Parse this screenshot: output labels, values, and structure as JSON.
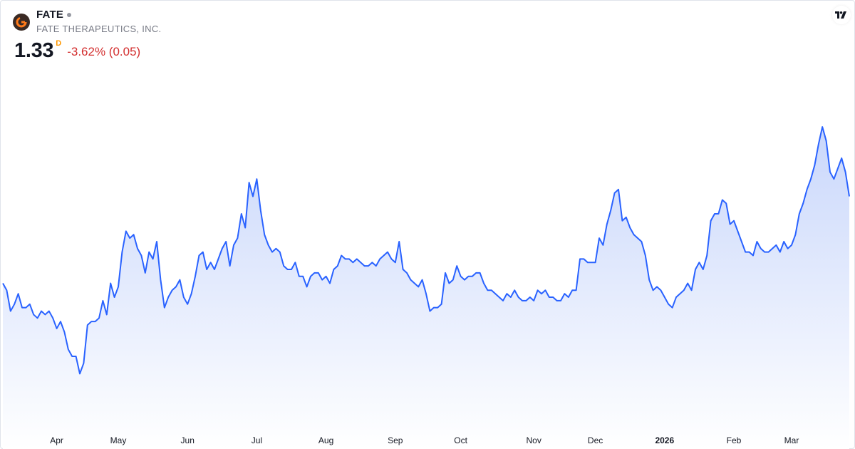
{
  "header": {
    "ticker": "FATE",
    "company": "FATE THERAPEUTICS, INC.",
    "price": "1.33",
    "interval": "D",
    "change": "-3.62% (0.05)"
  },
  "colors": {
    "line": "#2962ff",
    "fill_top": "#c9d7fb",
    "fill_bottom": "#ffffff",
    "negative": "#d32f2f",
    "interval": "#ff9800"
  },
  "icons": {
    "logo": "fate-logo-icon",
    "brand": "tradingview-logo-icon",
    "status": "market-status-dot"
  },
  "chart_data": {
    "type": "area",
    "title": "",
    "xlabel": "",
    "ylabel": "",
    "ylim": [
      0.71,
      1.69
    ],
    "grid": false,
    "legend": "none",
    "x_ticks": [
      {
        "label": "Apr",
        "index": 14,
        "bold": false
      },
      {
        "label": "May",
        "index": 30,
        "bold": false
      },
      {
        "label": "Jun",
        "index": 48,
        "bold": false
      },
      {
        "label": "Jul",
        "index": 66,
        "bold": false
      },
      {
        "label": "Aug",
        "index": 84,
        "bold": false
      },
      {
        "label": "Sep",
        "index": 102,
        "bold": false
      },
      {
        "label": "Oct",
        "index": 119,
        "bold": false
      },
      {
        "label": "Nov",
        "index": 138,
        "bold": false
      },
      {
        "label": "Dec",
        "index": 154,
        "bold": false
      },
      {
        "label": "2026",
        "index": 172,
        "bold": true
      },
      {
        "label": "Feb",
        "index": 190,
        "bold": false
      },
      {
        "label": "Mar",
        "index": 205,
        "bold": false
      }
    ],
    "series": [
      {
        "values": [
          1.08,
          1.06,
          1.0,
          1.02,
          1.05,
          1.01,
          1.01,
          1.02,
          0.99,
          0.98,
          1.0,
          0.99,
          1.0,
          0.98,
          0.95,
          0.97,
          0.94,
          0.89,
          0.87,
          0.87,
          0.82,
          0.85,
          0.96,
          0.97,
          0.97,
          0.98,
          1.03,
          0.99,
          1.08,
          1.04,
          1.07,
          1.17,
          1.23,
          1.21,
          1.22,
          1.18,
          1.16,
          1.11,
          1.17,
          1.15,
          1.2,
          1.09,
          1.01,
          1.04,
          1.06,
          1.07,
          1.09,
          1.04,
          1.02,
          1.05,
          1.1,
          1.16,
          1.17,
          1.12,
          1.14,
          1.12,
          1.15,
          1.18,
          1.2,
          1.13,
          1.19,
          1.21,
          1.28,
          1.24,
          1.37,
          1.33,
          1.38,
          1.29,
          1.22,
          1.19,
          1.17,
          1.18,
          1.17,
          1.13,
          1.12,
          1.12,
          1.14,
          1.1,
          1.1,
          1.07,
          1.1,
          1.11,
          1.11,
          1.09,
          1.1,
          1.08,
          1.12,
          1.13,
          1.16,
          1.15,
          1.15,
          1.14,
          1.15,
          1.14,
          1.13,
          1.13,
          1.14,
          1.13,
          1.15,
          1.16,
          1.17,
          1.15,
          1.14,
          1.2,
          1.12,
          1.11,
          1.09,
          1.08,
          1.07,
          1.09,
          1.05,
          1.0,
          1.01,
          1.01,
          1.02,
          1.11,
          1.08,
          1.09,
          1.13,
          1.1,
          1.09,
          1.1,
          1.1,
          1.11,
          1.11,
          1.08,
          1.06,
          1.06,
          1.05,
          1.04,
          1.03,
          1.05,
          1.04,
          1.06,
          1.04,
          1.03,
          1.03,
          1.04,
          1.03,
          1.06,
          1.05,
          1.06,
          1.04,
          1.04,
          1.03,
          1.03,
          1.05,
          1.04,
          1.06,
          1.06,
          1.15,
          1.15,
          1.14,
          1.14,
          1.14,
          1.21,
          1.19,
          1.25,
          1.29,
          1.34,
          1.35,
          1.26,
          1.27,
          1.24,
          1.22,
          1.21,
          1.2,
          1.16,
          1.09,
          1.06,
          1.07,
          1.06,
          1.04,
          1.02,
          1.01,
          1.04,
          1.05,
          1.06,
          1.08,
          1.06,
          1.12,
          1.14,
          1.12,
          1.16,
          1.26,
          1.28,
          1.28,
          1.32,
          1.31,
          1.25,
          1.26,
          1.23,
          1.2,
          1.17,
          1.17,
          1.16,
          1.2,
          1.18,
          1.17,
          1.17,
          1.18,
          1.19,
          1.17,
          1.2,
          1.18,
          1.19,
          1.22,
          1.28,
          1.31,
          1.35,
          1.38,
          1.42,
          1.48,
          1.53,
          1.49,
          1.4,
          1.38,
          1.41,
          1.44,
          1.4,
          1.33
        ]
      }
    ]
  }
}
